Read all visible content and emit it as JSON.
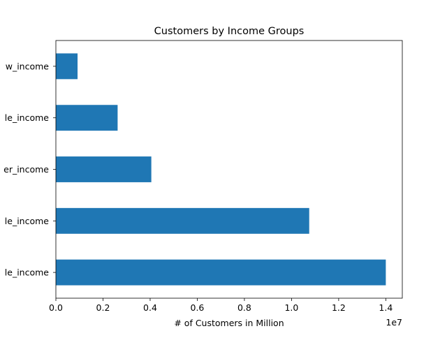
{
  "chart_data": {
    "type": "bar",
    "orientation": "horizontal",
    "title": "Customers by Income Groups",
    "xlabel": "# of Customers in Million",
    "ylabel": "",
    "x_offset_label": "1e7",
    "categories": [
      "le_income",
      "le_income",
      "er_income",
      "le_income",
      "w_income"
    ],
    "values": [
      14000000,
      10750000,
      4050000,
      2620000,
      920000
    ],
    "xlim": [
      0,
      14700000
    ],
    "xticks": [
      0,
      2000000,
      4000000,
      6000000,
      8000000,
      10000000,
      12000000,
      14000000
    ],
    "xtick_labels": [
      "0.0",
      "0.2",
      "0.4",
      "0.6",
      "0.8",
      "1.0",
      "1.2",
      "1.4"
    ],
    "grid": false,
    "colors": {
      "bar": "#1f77b4"
    }
  }
}
